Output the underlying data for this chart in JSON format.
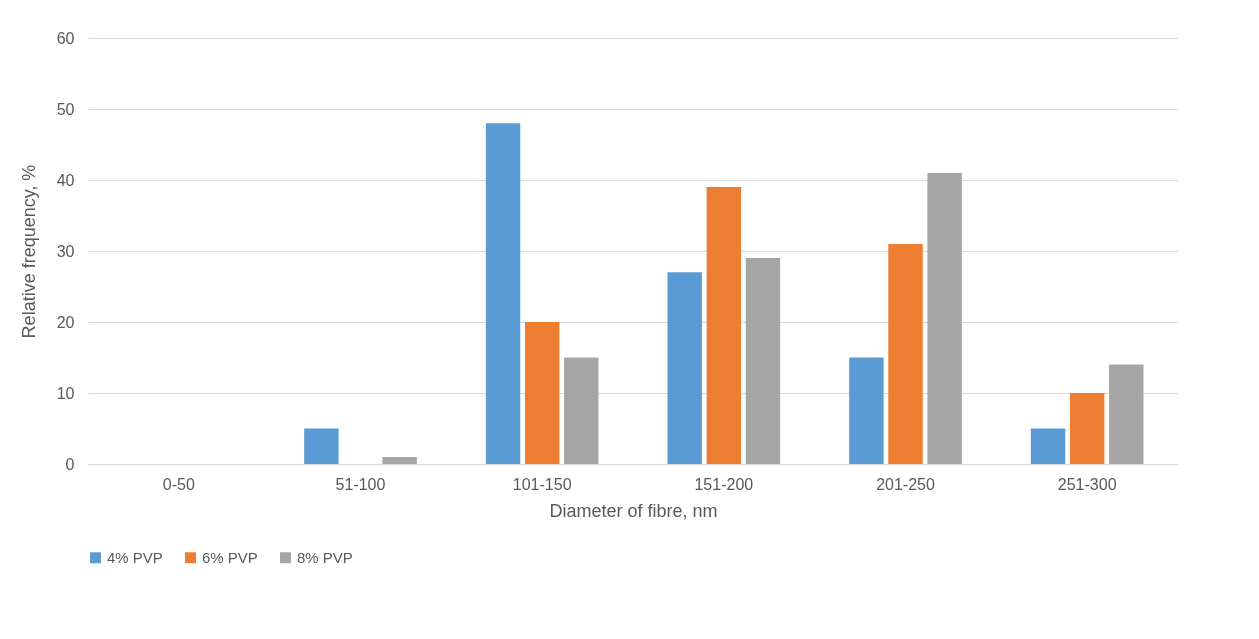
{
  "chart_data": {
    "type": "bar",
    "xlabel": "Diameter of fibre, nm",
    "ylabel": "Relative frequency, %",
    "categories": [
      "0-50",
      "51-100",
      "101-150",
      "151-200",
      "201-250",
      "251-300"
    ],
    "series": [
      {
        "name": "4% PVP",
        "color": "#5b9bd5",
        "values": [
          0,
          5,
          48,
          27,
          15,
          5
        ]
      },
      {
        "name": "6% PVP",
        "color": "#ed7d31",
        "values": [
          0,
          0,
          20,
          39,
          31,
          10
        ]
      },
      {
        "name": "8% PVP",
        "color": "#a5a5a5",
        "values": [
          0,
          1,
          15,
          29,
          41,
          14
        ]
      }
    ],
    "ylim": [
      0,
      60
    ],
    "yticks": [
      0,
      10,
      20,
      30,
      40,
      50,
      60
    ],
    "grid": "y",
    "legend": "bottom"
  }
}
